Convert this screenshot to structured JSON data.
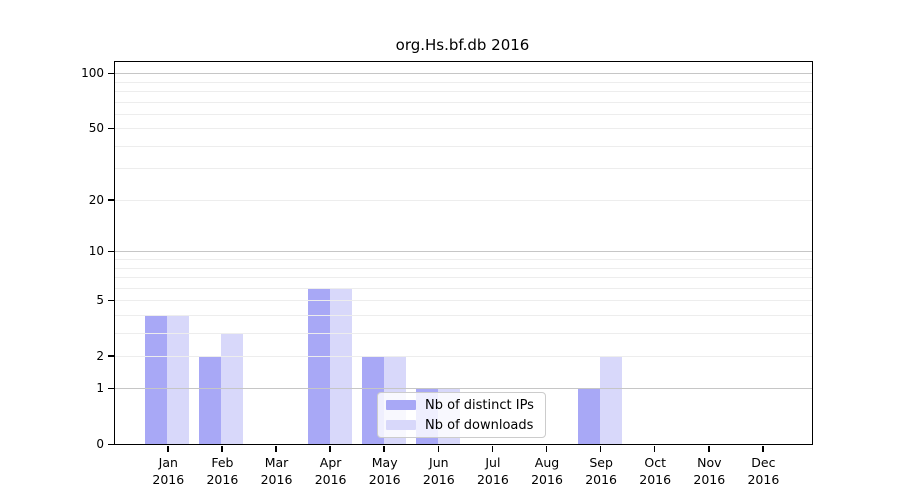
{
  "chart_data": {
    "type": "bar",
    "title": "org.Hs.bf.db 2016",
    "categories": [
      "Jan",
      "Feb",
      "Mar",
      "Apr",
      "May",
      "Jun",
      "Jul",
      "Aug",
      "Sep",
      "Oct",
      "Nov",
      "Dec"
    ],
    "category_year": "2016",
    "series": [
      {
        "name": "Nb of distinct IPs",
        "color": "#a8a8f6",
        "values": [
          4,
          2,
          0,
          6,
          2,
          1,
          0,
          0,
          1,
          0,
          0,
          0
        ]
      },
      {
        "name": "Nb of downloads",
        "color": "#d8d8fa",
        "values": [
          4,
          3,
          0,
          6,
          2,
          1,
          0,
          0,
          2,
          0,
          0,
          0
        ]
      }
    ],
    "xlabel": "",
    "ylabel": "",
    "yscale": "log1p",
    "ylim": [
      0,
      116
    ],
    "yticks": [
      0,
      1,
      2,
      5,
      10,
      20,
      50,
      100
    ],
    "grid": {
      "major_values": [
        1,
        10,
        100
      ],
      "minor_values": [
        2,
        3,
        4,
        5,
        6,
        7,
        8,
        9,
        20,
        30,
        40,
        50,
        60,
        70,
        80,
        90
      ],
      "major_color": "#c6c6c6",
      "minor_color": "#ededed"
    },
    "legend": {
      "position": "lower center",
      "entries": [
        "Nb of distinct IPs",
        "Nb of downloads"
      ]
    },
    "axis_color": "#000000",
    "background_color": "#ffffff"
  }
}
